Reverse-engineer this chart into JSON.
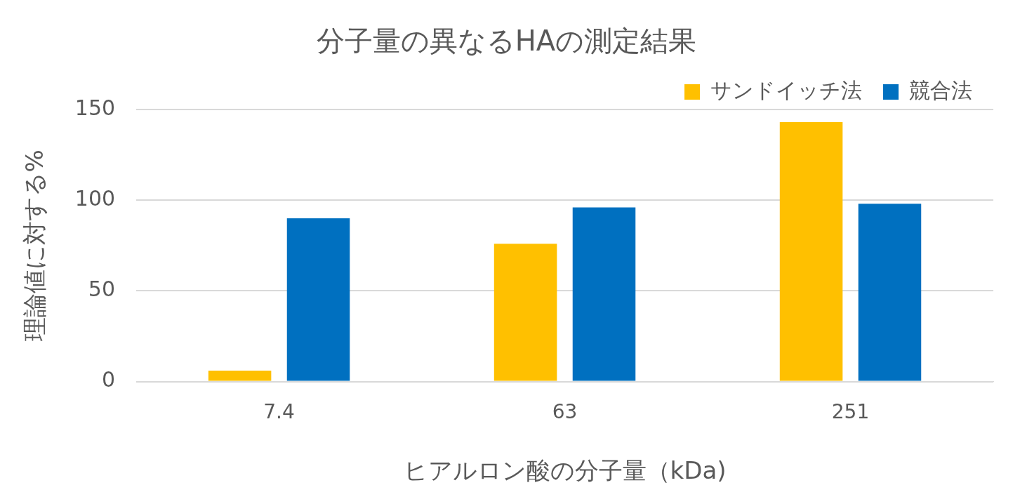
{
  "chart_data": {
    "type": "bar",
    "title": "分子量の異なるHAの測定結果",
    "xlabel": "ヒアルロン酸の分子量（kDa)",
    "ylabel": "理論値に対する%",
    "categories": [
      "7.4",
      "63",
      "251"
    ],
    "series": [
      {
        "name": "サンドイッチ法",
        "color": "#ffc000",
        "values": [
          6,
          76,
          143
        ]
      },
      {
        "name": "競合法",
        "color": "#0070c0",
        "values": [
          90,
          96,
          98
        ]
      }
    ],
    "ylim": [
      0,
      150
    ],
    "yticks": [
      0,
      50,
      100,
      150
    ],
    "grid": "y",
    "legend": "top right"
  }
}
